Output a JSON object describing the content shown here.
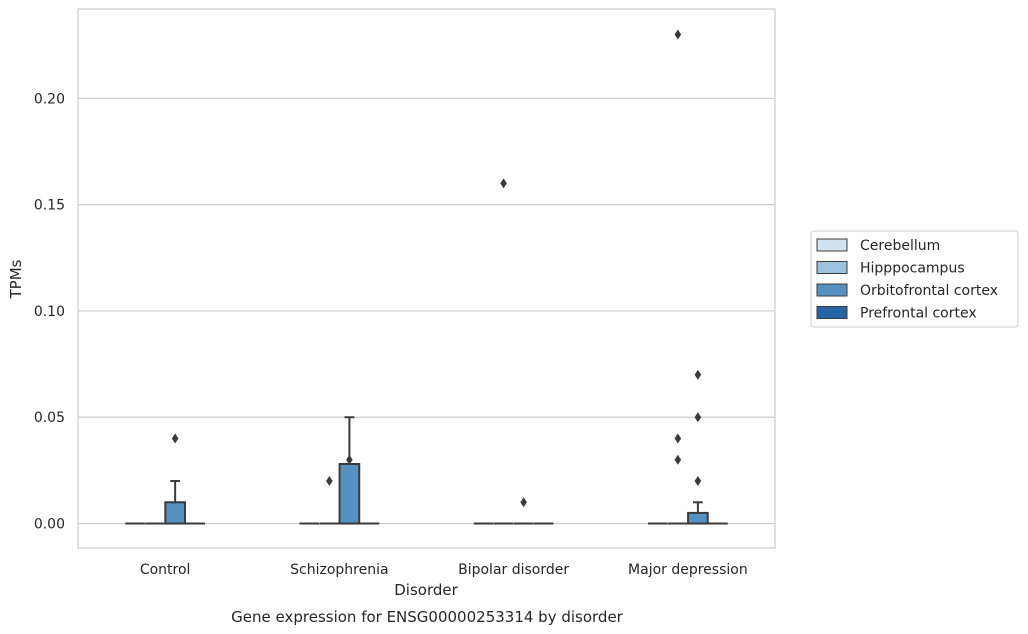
{
  "chart_data": {
    "type": "box",
    "title": "",
    "caption": "Gene expression for ENSG00000253314 by disorder",
    "xlabel": "Disorder",
    "ylabel": "TPMs",
    "categories": [
      "Control",
      "Schizophrenia",
      "Bipolar disorder",
      "Major depression"
    ],
    "ylim": [
      -0.0115,
      0.242
    ],
    "yticks": [
      0.0,
      0.05,
      0.1,
      0.15,
      0.2
    ],
    "ytick_labels": [
      "0.00",
      "0.05",
      "0.10",
      "0.15",
      "0.20"
    ],
    "grid": true,
    "legend_position": "right-outside",
    "series": [
      {
        "name": "Cerebellum",
        "color": "#d3e2ef",
        "boxes": [
          {
            "category": "Control",
            "q1": 0,
            "median": 0,
            "q3": 0,
            "whisker_low": 0,
            "whisker_high": 0,
            "outliers": []
          },
          {
            "category": "Schizophrenia",
            "q1": 0,
            "median": 0,
            "q3": 0,
            "whisker_low": 0,
            "whisker_high": 0,
            "outliers": []
          },
          {
            "category": "Bipolar disorder",
            "q1": 0,
            "median": 0,
            "q3": 0,
            "whisker_low": 0,
            "whisker_high": 0,
            "outliers": []
          },
          {
            "category": "Major depression",
            "q1": 0,
            "median": 0,
            "q3": 0,
            "whisker_low": 0,
            "whisker_high": 0,
            "outliers": []
          }
        ]
      },
      {
        "name": "Hipppocampus",
        "color": "#9bc3de",
        "boxes": [
          {
            "category": "Control",
            "q1": 0,
            "median": 0,
            "q3": 0,
            "whisker_low": 0,
            "whisker_high": 0,
            "outliers": []
          },
          {
            "category": "Schizophrenia",
            "q1": 0,
            "median": 0,
            "q3": 0,
            "whisker_low": 0,
            "whisker_high": 0,
            "outliers": [
              0.02
            ]
          },
          {
            "category": "Bipolar disorder",
            "q1": 0,
            "median": 0,
            "q3": 0,
            "whisker_low": 0,
            "whisker_high": 0,
            "outliers": [
              0.16
            ]
          },
          {
            "category": "Major depression",
            "q1": 0,
            "median": 0,
            "q3": 0,
            "whisker_low": 0,
            "whisker_high": 0,
            "outliers": [
              0.04,
              0.03,
              0.23
            ]
          }
        ]
      },
      {
        "name": "Orbitofrontal cortex",
        "color": "#5592c2",
        "boxes": [
          {
            "category": "Control",
            "q1": 0,
            "median": 0,
            "q3": 0.01,
            "whisker_low": 0,
            "whisker_high": 0.02,
            "outliers": [
              0.04
            ]
          },
          {
            "category": "Schizophrenia",
            "q1": 0,
            "median": 0,
            "q3": 0.028,
            "whisker_low": 0,
            "whisker_high": 0.05,
            "outliers": [
              0.03
            ]
          },
          {
            "category": "Bipolar disorder",
            "q1": 0,
            "median": 0,
            "q3": 0,
            "whisker_low": 0,
            "whisker_high": 0,
            "outliers": [
              0.01
            ]
          },
          {
            "category": "Major depression",
            "q1": 0,
            "median": 0,
            "q3": 0.005,
            "whisker_low": 0,
            "whisker_high": 0.01,
            "outliers": [
              0.07,
              0.05,
              0.02
            ]
          }
        ]
      },
      {
        "name": "Prefrontal cortex",
        "color": "#2565a6",
        "boxes": [
          {
            "category": "Control",
            "q1": 0,
            "median": 0,
            "q3": 0,
            "whisker_low": 0,
            "whisker_high": 0,
            "outliers": []
          },
          {
            "category": "Schizophrenia",
            "q1": 0,
            "median": 0,
            "q3": 0,
            "whisker_low": 0,
            "whisker_high": 0,
            "outliers": []
          },
          {
            "category": "Bipolar disorder",
            "q1": 0,
            "median": 0,
            "q3": 0,
            "whisker_low": 0,
            "whisker_high": 0,
            "outliers": []
          },
          {
            "category": "Major depression",
            "q1": 0,
            "median": 0,
            "q3": 0,
            "whisker_low": 0,
            "whisker_high": 0,
            "outliers": []
          }
        ]
      }
    ]
  }
}
